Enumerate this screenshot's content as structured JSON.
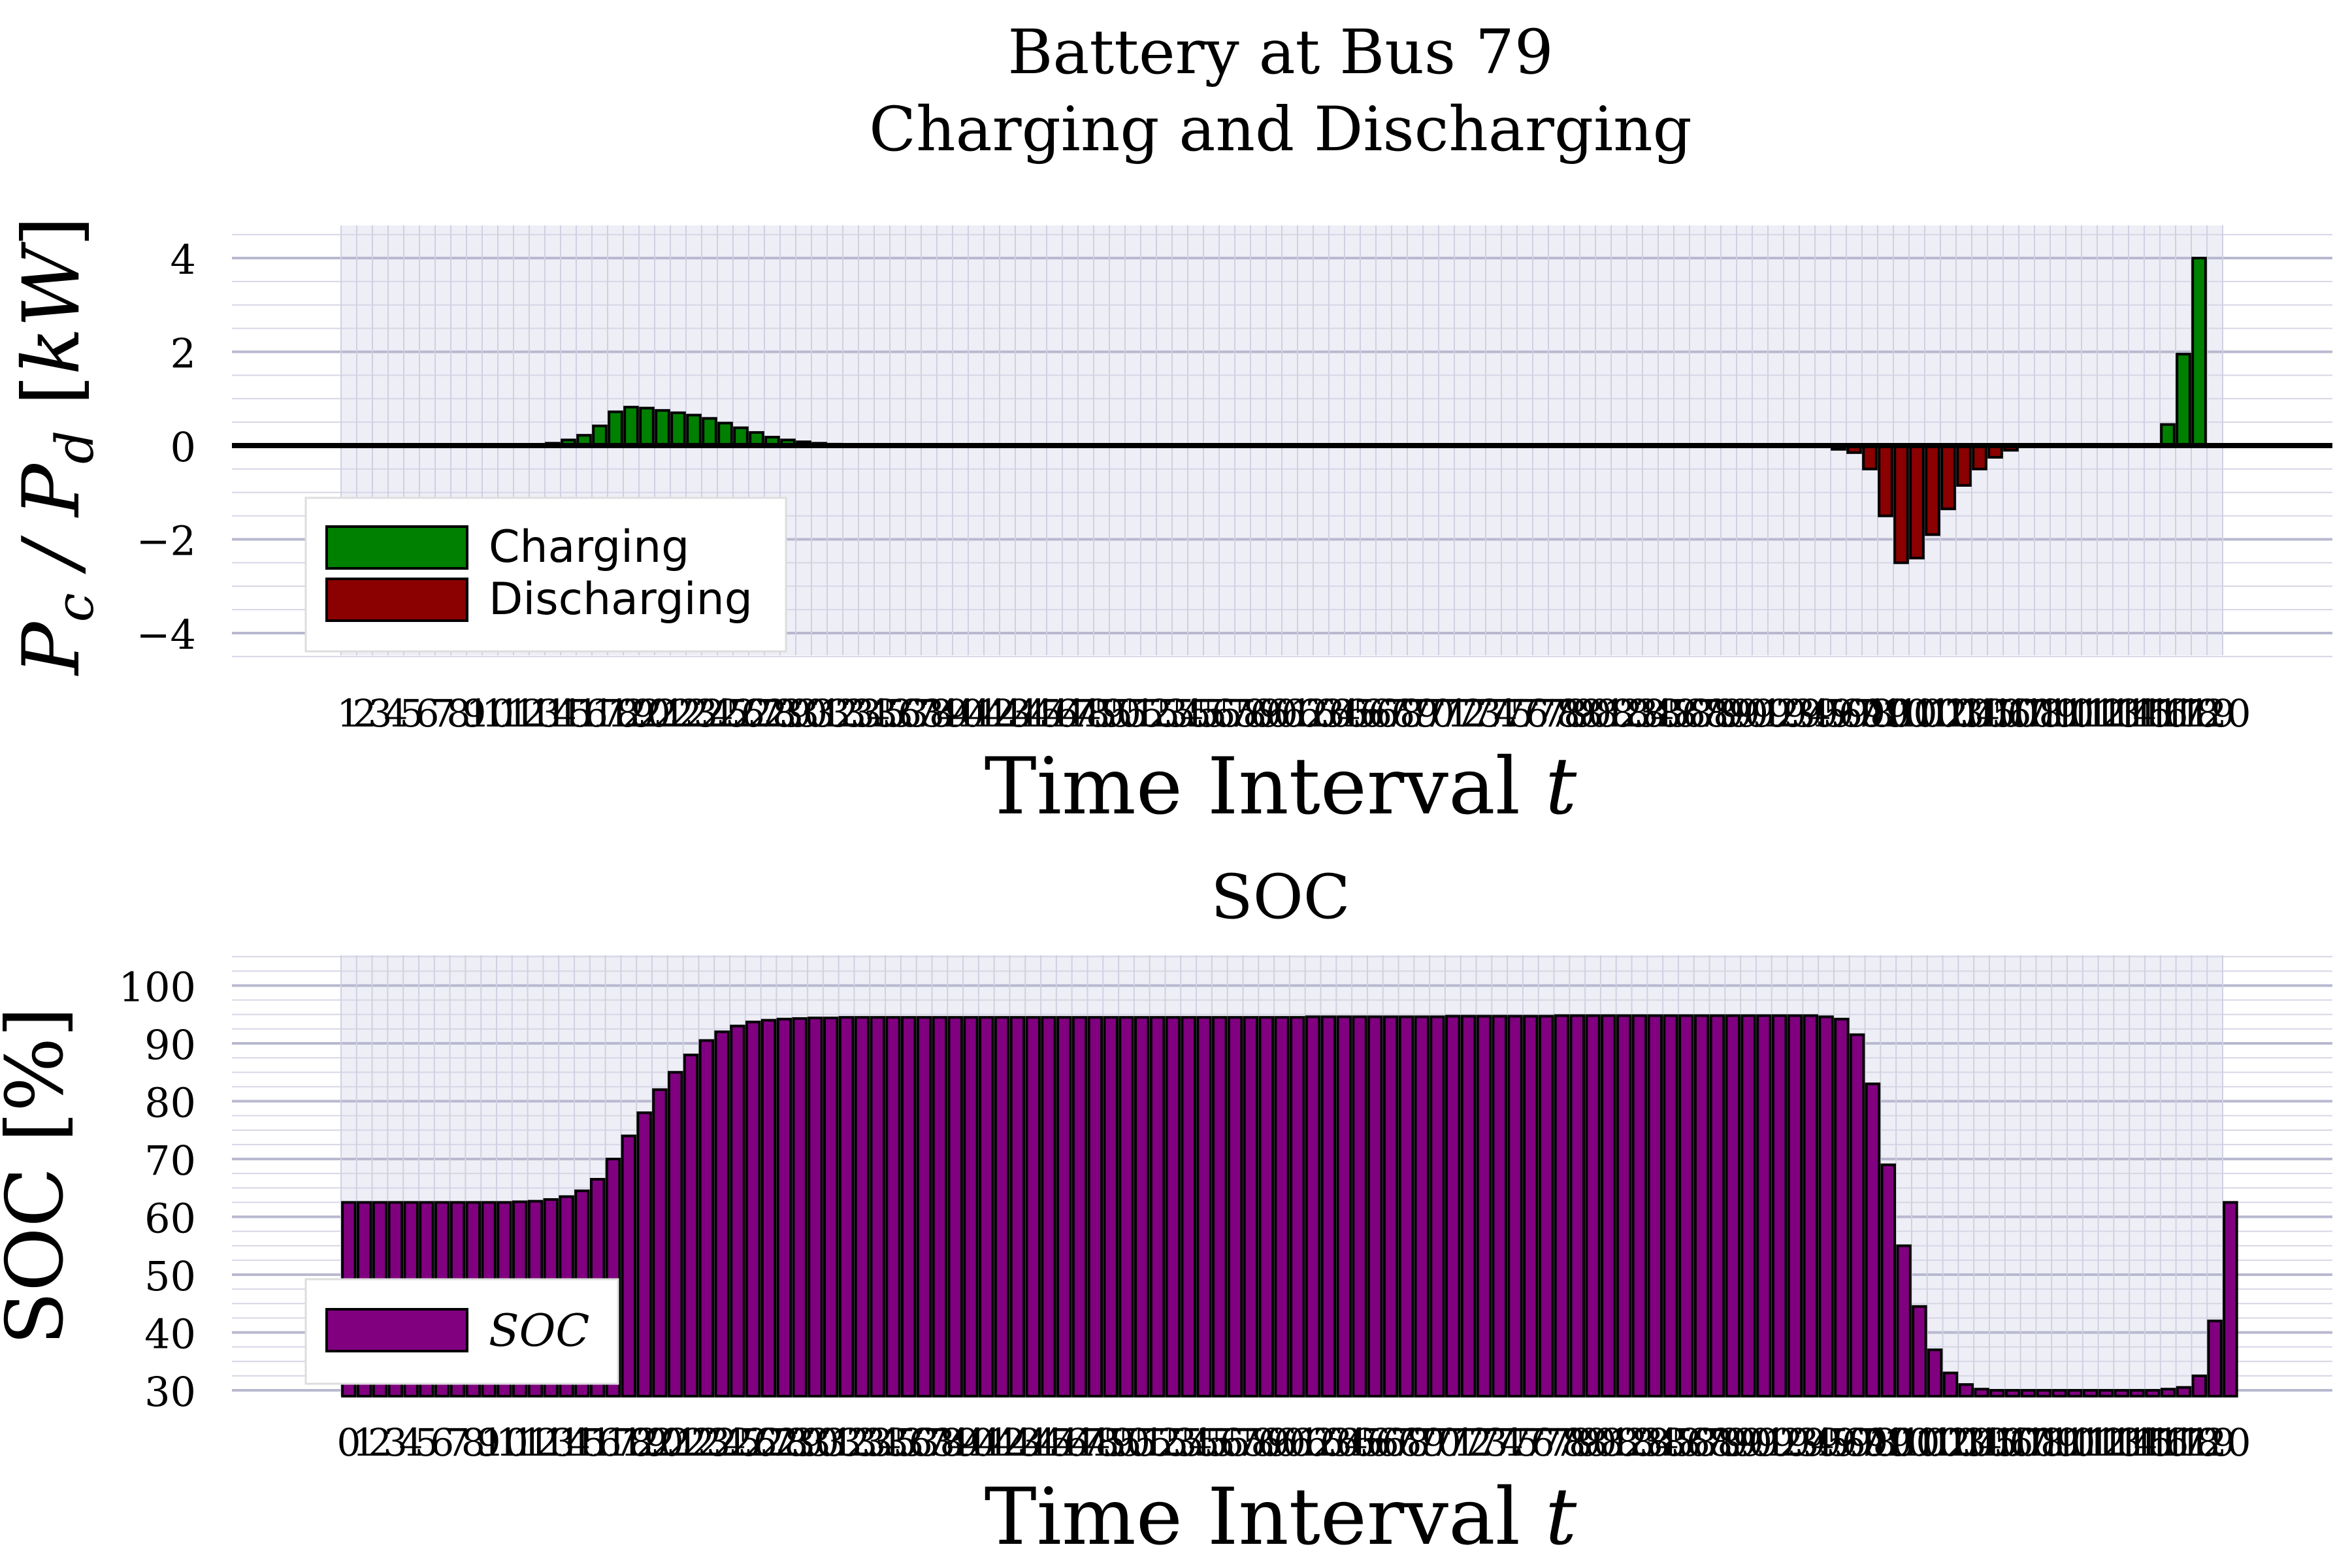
{
  "chart_data": [
    {
      "type": "bar",
      "title_line1": "Battery at Bus 79",
      "title_line2": "Charging and Discharging",
      "xlabel": "Time Interval t",
      "ylabel": "P_c / P_d [kW]",
      "ylim": [
        -4.5,
        4.5
      ],
      "yticks": [
        "4",
        "2",
        "0",
        "−2",
        "−4"
      ],
      "xticks": [
        "1",
        "2",
        "3",
        "4",
        "5",
        "6",
        "7",
        "8",
        "9",
        "10",
        "11",
        "12",
        "13",
        "14",
        "15",
        "16",
        "17",
        "18",
        "19",
        "20",
        "21",
        "22",
        "23",
        "24",
        "25",
        "26",
        "27",
        "28",
        "29",
        "30",
        "31",
        "32",
        "33",
        "34",
        "35",
        "36",
        "37",
        "38",
        "39",
        "40",
        "41",
        "42",
        "43",
        "44",
        "45",
        "46",
        "47",
        "48",
        "49",
        "50",
        "51",
        "52",
        "53",
        "54",
        "55",
        "56",
        "57",
        "58",
        "59",
        "60",
        "61",
        "62",
        "63",
        "64",
        "65",
        "66",
        "67",
        "68",
        "69",
        "70",
        "71",
        "72",
        "73",
        "74",
        "75",
        "76",
        "77",
        "78",
        "79",
        "80",
        "81",
        "82",
        "83",
        "84",
        "85",
        "86",
        "87",
        "88",
        "89",
        "90",
        "91",
        "92",
        "93",
        "94",
        "95",
        "96",
        "97",
        "98",
        "99",
        "100",
        "101",
        "102",
        "103",
        "104",
        "105",
        "106",
        "107",
        "108",
        "109",
        "110",
        "111",
        "112",
        "113",
        "114",
        "115",
        "116",
        "117",
        "118",
        "119",
        "120"
      ],
      "x_start": 1,
      "series": [
        {
          "name": "Charging",
          "color": "#008000",
          "values": [
            0,
            0,
            0,
            0,
            0,
            0,
            0,
            0,
            0,
            0,
            0,
            0,
            0.02,
            0.05,
            0.12,
            0.22,
            0.42,
            0.72,
            0.82,
            0.8,
            0.75,
            0.7,
            0.65,
            0.58,
            0.48,
            0.38,
            0.28,
            0.18,
            0.12,
            0.08,
            0.05,
            0.03,
            0.02,
            0.01,
            0,
            0,
            0,
            0,
            0,
            0,
            0,
            0,
            0,
            0,
            0,
            0,
            0,
            0,
            0,
            0,
            0,
            0,
            0,
            0,
            0,
            0,
            0,
            0,
            0,
            0,
            0,
            0,
            0,
            0,
            0,
            0,
            0,
            0,
            0,
            0,
            0,
            0,
            0,
            0,
            0,
            0,
            0,
            0,
            0,
            0,
            0,
            0,
            0,
            0,
            0,
            0,
            0,
            0,
            0,
            0,
            0,
            0,
            0,
            0,
            0,
            0,
            0,
            0,
            0,
            0,
            0,
            0,
            0,
            0,
            0,
            0,
            0,
            0,
            0,
            0,
            0,
            0,
            0,
            0,
            0,
            0,
            0.45,
            1.95,
            4.0,
            0
          ]
        },
        {
          "name": "Discharging",
          "color": "#8b0000",
          "values": [
            0,
            0,
            0,
            0,
            0,
            0,
            0,
            0,
            0,
            0,
            0,
            0,
            0,
            0,
            0,
            0,
            0,
            0,
            0,
            0,
            0,
            0,
            0,
            0,
            0,
            0,
            0,
            0,
            0,
            0,
            0,
            0,
            0,
            0,
            0,
            0,
            0,
            0,
            0,
            0,
            0,
            0,
            0,
            0,
            0,
            0,
            0,
            0,
            0,
            0,
            0,
            0,
            0,
            0,
            0,
            0,
            0,
            0,
            0,
            0,
            0,
            0,
            0,
            0,
            0,
            0,
            0,
            0,
            0,
            0,
            0,
            0,
            0,
            0,
            0,
            0,
            0,
            0,
            0,
            0,
            0,
            0,
            0,
            0,
            0,
            0,
            0,
            0,
            0,
            0,
            0,
            0,
            0,
            0,
            0,
            -0.08,
            -0.15,
            -0.5,
            -1.5,
            -2.5,
            -2.4,
            -1.9,
            -1.35,
            -0.85,
            -0.5,
            -0.25,
            -0.1,
            0,
            0,
            0,
            0,
            0,
            0,
            0,
            0,
            0,
            0,
            0,
            0,
            0
          ]
        }
      ]
    },
    {
      "type": "bar",
      "title": "SOC",
      "xlabel": "Time Interval t",
      "ylabel": "SOC [%]",
      "ylim": [
        30,
        105
      ],
      "yticks": [
        "100",
        "90",
        "80",
        "70",
        "60",
        "50",
        "40",
        "30"
      ],
      "xticks": [
        "0",
        "1",
        "2",
        "3",
        "4",
        "5",
        "6",
        "7",
        "8",
        "9",
        "10",
        "11",
        "12",
        "13",
        "14",
        "15",
        "16",
        "17",
        "18",
        "19",
        "20",
        "21",
        "22",
        "23",
        "24",
        "25",
        "26",
        "27",
        "28",
        "29",
        "30",
        "31",
        "32",
        "33",
        "34",
        "35",
        "36",
        "37",
        "38",
        "39",
        "40",
        "41",
        "42",
        "43",
        "44",
        "45",
        "46",
        "47",
        "48",
        "49",
        "50",
        "51",
        "52",
        "53",
        "54",
        "55",
        "56",
        "57",
        "58",
        "59",
        "60",
        "61",
        "62",
        "63",
        "64",
        "65",
        "66",
        "67",
        "68",
        "69",
        "70",
        "71",
        "72",
        "73",
        "74",
        "75",
        "76",
        "77",
        "78",
        "79",
        "80",
        "81",
        "82",
        "83",
        "84",
        "85",
        "86",
        "87",
        "88",
        "89",
        "90",
        "91",
        "92",
        "93",
        "94",
        "95",
        "96",
        "97",
        "98",
        "99",
        "100",
        "101",
        "102",
        "103",
        "104",
        "105",
        "106",
        "107",
        "108",
        "109",
        "110",
        "111",
        "112",
        "113",
        "114",
        "115",
        "116",
        "117",
        "118",
        "119",
        "120"
      ],
      "x_start": 0,
      "series": [
        {
          "name": "SOC",
          "color": "#800080",
          "values": [
            62.5,
            62.5,
            62.5,
            62.5,
            62.5,
            62.5,
            62.5,
            62.5,
            62.5,
            62.5,
            62.5,
            62.6,
            62.7,
            63.0,
            63.5,
            64.5,
            66.5,
            70,
            74,
            78,
            82,
            85,
            88,
            90.5,
            92,
            93,
            93.7,
            94,
            94.2,
            94.3,
            94.4,
            94.4,
            94.5,
            94.5,
            94.5,
            94.5,
            94.5,
            94.5,
            94.5,
            94.5,
            94.5,
            94.5,
            94.5,
            94.5,
            94.5,
            94.5,
            94.5,
            94.5,
            94.5,
            94.5,
            94.5,
            94.5,
            94.5,
            94.5,
            94.5,
            94.5,
            94.5,
            94.5,
            94.5,
            94.5,
            94.5,
            94.5,
            94.6,
            94.6,
            94.6,
            94.6,
            94.6,
            94.6,
            94.6,
            94.6,
            94.6,
            94.7,
            94.7,
            94.7,
            94.7,
            94.7,
            94.7,
            94.7,
            94.8,
            94.8,
            94.8,
            94.8,
            94.8,
            94.8,
            94.8,
            94.8,
            94.8,
            94.8,
            94.8,
            94.8,
            94.8,
            94.8,
            94.8,
            94.8,
            94.8,
            94.6,
            94.2,
            91.5,
            83,
            69,
            55,
            44.5,
            37,
            33,
            31,
            30.2,
            30,
            30,
            30,
            30,
            30,
            30,
            30,
            30,
            30,
            30,
            30,
            30.2,
            30.5,
            32.5,
            42,
            62.5
          ]
        }
      ]
    }
  ]
}
